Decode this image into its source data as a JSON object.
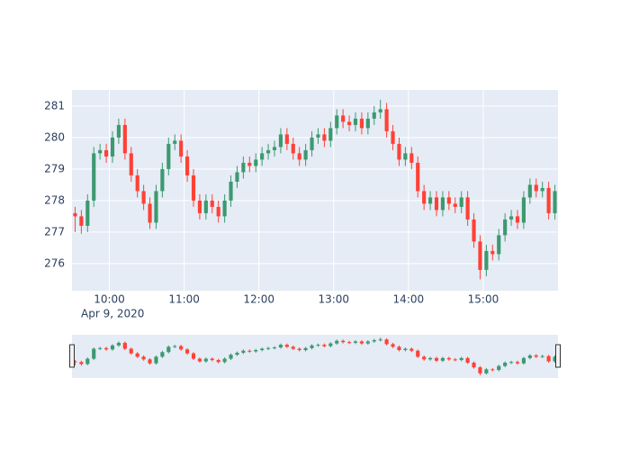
{
  "chart_data": {
    "type": "candlestick",
    "x": [
      "2020-04-09 09:30",
      "2020-04-09 09:35",
      "2020-04-09 09:40",
      "2020-04-09 09:45",
      "2020-04-09 09:50",
      "2020-04-09 09:55",
      "2020-04-09 10:00",
      "2020-04-09 10:05",
      "2020-04-09 10:10",
      "2020-04-09 10:15",
      "2020-04-09 10:20",
      "2020-04-09 10:25",
      "2020-04-09 10:30",
      "2020-04-09 10:35",
      "2020-04-09 10:40",
      "2020-04-09 10:45",
      "2020-04-09 10:50",
      "2020-04-09 10:55",
      "2020-04-09 11:00",
      "2020-04-09 11:05",
      "2020-04-09 11:10",
      "2020-04-09 11:15",
      "2020-04-09 11:20",
      "2020-04-09 11:25",
      "2020-04-09 11:30",
      "2020-04-09 11:35",
      "2020-04-09 11:40",
      "2020-04-09 11:45",
      "2020-04-09 11:50",
      "2020-04-09 11:55",
      "2020-04-09 12:00",
      "2020-04-09 12:05",
      "2020-04-09 12:10",
      "2020-04-09 12:15",
      "2020-04-09 12:20",
      "2020-04-09 12:25",
      "2020-04-09 12:30",
      "2020-04-09 12:35",
      "2020-04-09 12:40",
      "2020-04-09 12:45",
      "2020-04-09 12:50",
      "2020-04-09 12:55",
      "2020-04-09 13:00",
      "2020-04-09 13:05",
      "2020-04-09 13:10",
      "2020-04-09 13:15",
      "2020-04-09 13:20",
      "2020-04-09 13:25",
      "2020-04-09 13:30",
      "2020-04-09 13:35",
      "2020-04-09 13:40",
      "2020-04-09 13:45",
      "2020-04-09 13:50",
      "2020-04-09 13:55",
      "2020-04-09 14:00",
      "2020-04-09 14:05",
      "2020-04-09 14:10",
      "2020-04-09 14:15",
      "2020-04-09 14:20",
      "2020-04-09 14:25",
      "2020-04-09 14:30",
      "2020-04-09 14:35",
      "2020-04-09 14:40",
      "2020-04-09 14:45",
      "2020-04-09 14:50",
      "2020-04-09 14:55",
      "2020-04-09 15:00",
      "2020-04-09 15:05",
      "2020-04-09 15:10",
      "2020-04-09 15:15",
      "2020-04-09 15:20",
      "2020-04-09 15:25",
      "2020-04-09 15:30",
      "2020-04-09 15:35",
      "2020-04-09 15:40",
      "2020-04-09 15:45",
      "2020-04-09 15:50",
      "2020-04-09 15:55"
    ],
    "open": [
      277.6,
      277.5,
      277.2,
      278.0,
      279.5,
      279.6,
      279.4,
      280.0,
      280.4,
      279.5,
      278.8,
      278.3,
      277.9,
      277.3,
      278.3,
      279.0,
      279.8,
      279.9,
      279.4,
      278.8,
      278.0,
      277.6,
      278.0,
      277.8,
      277.5,
      278.0,
      278.6,
      278.9,
      279.2,
      279.1,
      279.3,
      279.5,
      279.6,
      279.7,
      280.1,
      279.8,
      279.5,
      279.3,
      279.6,
      280.0,
      280.1,
      279.9,
      280.3,
      280.7,
      280.5,
      280.4,
      280.6,
      280.3,
      280.6,
      280.8,
      280.9,
      280.2,
      279.8,
      279.3,
      279.5,
      279.2,
      278.3,
      277.9,
      278.1,
      277.7,
      278.1,
      277.9,
      277.8,
      278.1,
      277.4,
      276.7,
      275.8,
      276.4,
      276.3,
      276.9,
      277.4,
      277.5,
      277.3,
      278.1,
      278.5,
      278.3,
      278.4,
      277.6
    ],
    "high": [
      277.8,
      277.7,
      278.2,
      279.7,
      279.8,
      279.8,
      280.2,
      280.6,
      280.6,
      279.7,
      279.0,
      278.5,
      278.1,
      278.5,
      279.2,
      280.0,
      280.1,
      280.1,
      279.6,
      279.0,
      278.2,
      278.2,
      278.2,
      278.0,
      278.2,
      278.8,
      279.1,
      279.4,
      279.4,
      279.5,
      279.7,
      279.8,
      279.9,
      280.3,
      280.3,
      280.0,
      279.7,
      279.8,
      280.2,
      280.3,
      280.3,
      280.5,
      280.9,
      280.9,
      280.7,
      280.8,
      280.8,
      280.8,
      281.0,
      281.2,
      281.1,
      280.4,
      280.0,
      279.7,
      279.7,
      279.4,
      278.5,
      278.3,
      278.3,
      278.3,
      278.3,
      278.1,
      278.3,
      278.3,
      277.6,
      276.9,
      276.6,
      276.6,
      277.1,
      277.6,
      277.7,
      277.7,
      278.3,
      278.7,
      278.7,
      278.6,
      278.6,
      278.5
    ],
    "low": [
      277.0,
      276.95,
      277.0,
      277.8,
      279.3,
      279.2,
      279.2,
      279.8,
      279.3,
      278.6,
      278.1,
      277.7,
      277.1,
      277.1,
      278.1,
      278.8,
      279.6,
      279.2,
      278.6,
      277.8,
      277.4,
      277.4,
      277.6,
      277.3,
      277.3,
      277.8,
      278.4,
      278.7,
      278.9,
      278.9,
      279.1,
      279.3,
      279.4,
      279.5,
      279.6,
      279.3,
      279.1,
      279.1,
      279.4,
      279.8,
      279.7,
      279.7,
      280.1,
      280.3,
      280.2,
      280.2,
      280.1,
      280.1,
      280.4,
      280.6,
      280.0,
      279.6,
      279.1,
      279.1,
      279.0,
      278.1,
      277.7,
      277.7,
      277.5,
      277.5,
      277.7,
      277.6,
      277.6,
      277.2,
      276.5,
      275.5,
      275.6,
      276.1,
      276.1,
      276.7,
      277.2,
      277.1,
      277.1,
      277.9,
      278.1,
      278.1,
      277.4,
      277.4
    ],
    "close": [
      277.5,
      277.2,
      278.0,
      279.5,
      279.6,
      279.4,
      280.0,
      280.4,
      279.5,
      278.8,
      278.3,
      277.9,
      277.3,
      278.3,
      279.0,
      279.8,
      279.9,
      279.4,
      278.8,
      278.0,
      277.6,
      278.0,
      277.8,
      277.5,
      278.0,
      278.6,
      278.9,
      279.2,
      279.1,
      279.3,
      279.5,
      279.6,
      279.7,
      280.1,
      279.8,
      279.5,
      279.3,
      279.6,
      280.0,
      280.1,
      279.9,
      280.3,
      280.7,
      280.5,
      280.4,
      280.6,
      280.3,
      280.6,
      280.8,
      280.9,
      280.2,
      279.8,
      279.3,
      279.5,
      279.2,
      278.3,
      277.9,
      278.1,
      277.7,
      278.1,
      277.9,
      277.8,
      278.1,
      277.4,
      276.7,
      275.8,
      276.4,
      276.3,
      276.9,
      277.4,
      277.5,
      277.3,
      278.1,
      278.5,
      278.3,
      278.4,
      277.6,
      278.3
    ],
    "increasing_color": "#3D9970",
    "decreasing_color": "#FF4136",
    "xlim": [
      "2020-04-09 09:30",
      "2020-04-09 16:00"
    ],
    "xticks": [
      {
        "value": "2020-04-09 10:00",
        "label": "10:00"
      },
      {
        "value": "2020-04-09 11:00",
        "label": "11:00"
      },
      {
        "value": "2020-04-09 12:00",
        "label": "12:00"
      },
      {
        "value": "2020-04-09 13:00",
        "label": "13:00"
      },
      {
        "value": "2020-04-09 14:00",
        "label": "14:00"
      },
      {
        "value": "2020-04-09 15:00",
        "label": "15:00"
      }
    ],
    "x_date_label": "Apr 9, 2020",
    "ylim": [
      275.14,
      281.51
    ],
    "yticks": [
      276,
      277,
      278,
      279,
      280,
      281
    ],
    "grid": true,
    "rangeslider": true
  }
}
